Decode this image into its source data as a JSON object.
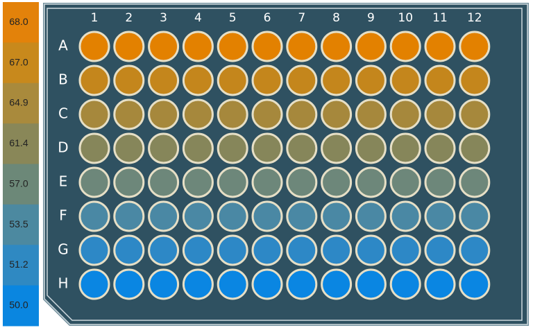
{
  "legend": {
    "items": [
      {
        "label": "68.0",
        "color": "#e3820a"
      },
      {
        "label": "67.0",
        "color": "#c8891c"
      },
      {
        "label": "64.9",
        "color": "#a98a3c"
      },
      {
        "label": "61.4",
        "color": "#898758"
      },
      {
        "label": "57.0",
        "color": "#6c8878"
      },
      {
        "label": "53.5",
        "color": "#4c89a0"
      },
      {
        "label": "51.2",
        "color": "#2f89c2"
      },
      {
        "label": "50.0",
        "color": "#0a86e0"
      }
    ]
  },
  "plate": {
    "columns": [
      "1",
      "2",
      "3",
      "4",
      "5",
      "6",
      "7",
      "8",
      "9",
      "10",
      "11",
      "12"
    ],
    "rows": [
      {
        "label": "A",
        "color": "#e38100"
      },
      {
        "label": "B",
        "color": "#c4861c"
      },
      {
        "label": "C",
        "color": "#a6883c"
      },
      {
        "label": "D",
        "color": "#86865a"
      },
      {
        "label": "E",
        "color": "#6d877a"
      },
      {
        "label": "F",
        "color": "#4a88a4"
      },
      {
        "label": "G",
        "color": "#2d88c6"
      },
      {
        "label": "H",
        "color": "#0a86e2"
      }
    ]
  }
}
